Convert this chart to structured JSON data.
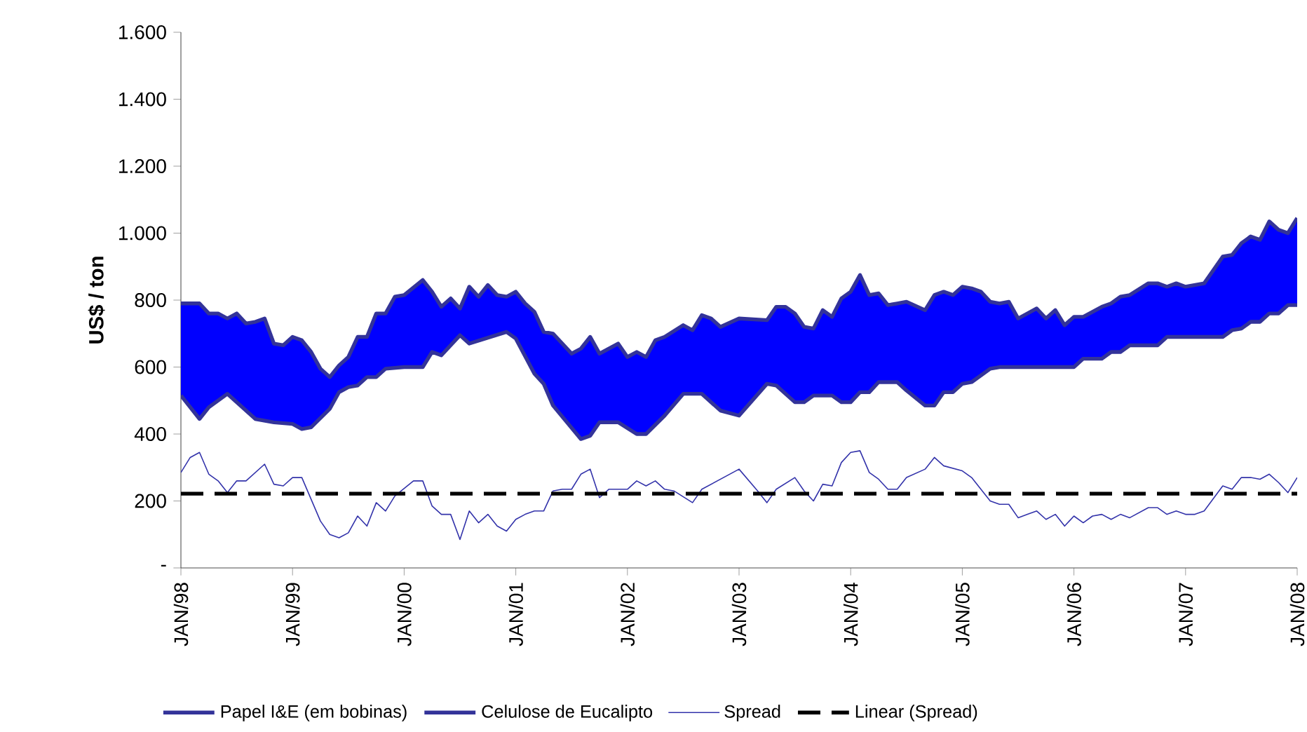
{
  "chart_data": {
    "type": "line",
    "ylabel": "US$ / ton",
    "xlim": [
      "1998-01",
      "2008-01"
    ],
    "xticks": [
      {
        "value": "1998-01",
        "label": "JAN/98"
      },
      {
        "value": "1999-01",
        "label": "JAN/99"
      },
      {
        "value": "2000-01",
        "label": "JAN/00"
      },
      {
        "value": "2001-01",
        "label": "JAN/01"
      },
      {
        "value": "2002-01",
        "label": "JAN/02"
      },
      {
        "value": "2003-01",
        "label": "JAN/03"
      },
      {
        "value": "2004-01",
        "label": "JAN/04"
      },
      {
        "value": "2005-01",
        "label": "JAN/05"
      },
      {
        "value": "2006-01",
        "label": "JAN/06"
      },
      {
        "value": "2007-01",
        "label": "JAN/07"
      },
      {
        "value": "2008-01",
        "label": "JAN/08"
      }
    ],
    "ylim": [
      0,
      1600
    ],
    "yticks": [
      {
        "value": 0,
        "label": "-"
      },
      200,
      400,
      600,
      800,
      {
        "value": 1000,
        "label": "1.000"
      },
      {
        "value": 1200,
        "label": "1.200"
      },
      {
        "value": 1400,
        "label": "1.400"
      },
      {
        "value": 1600,
        "label": "1.600"
      }
    ],
    "legend": "bottom",
    "series": [
      {
        "name": "Papel I&E (em bobinas)",
        "type": "area",
        "color": "#0000ff",
        "x": [
          "1998-01",
          "1998-03",
          "1998-04",
          "1998-05",
          "1998-06",
          "1998-07",
          "1998-08",
          "1998-09",
          "1998-10",
          "1998-11",
          "1998-12",
          "1999-01",
          "1999-02",
          "1999-03",
          "1999-04",
          "1999-05",
          "1999-06",
          "1999-07",
          "1999-08",
          "1999-09",
          "1999-10",
          "1999-11",
          "1999-12",
          "2000-01",
          "2000-03",
          "2000-04",
          "2000-05",
          "2000-06",
          "2000-07",
          "2000-08",
          "2000-09",
          "2000-10",
          "2000-11",
          "2000-12",
          "2001-01",
          "2001-02",
          "2001-03",
          "2001-04",
          "2001-05",
          "2001-07",
          "2001-08",
          "2001-09",
          "2001-10",
          "2001-12",
          "2002-01",
          "2002-02",
          "2002-03",
          "2002-04",
          "2002-05",
          "2002-07",
          "2002-08",
          "2002-09",
          "2002-10",
          "2002-11",
          "2003-01",
          "2003-04",
          "2003-05",
          "2003-06",
          "2003-07",
          "2003-08",
          "2003-09",
          "2003-10",
          "2003-11",
          "2003-12",
          "2004-01",
          "2004-02",
          "2004-03",
          "2004-04",
          "2004-05",
          "2004-06",
          "2004-07",
          "2004-09",
          "2004-10",
          "2004-11",
          "2004-12",
          "2005-01",
          "2005-02",
          "2005-03",
          "2005-04",
          "2005-05",
          "2005-06",
          "2005-07",
          "2005-09",
          "2005-10",
          "2005-11",
          "2005-12",
          "2006-01",
          "2006-02",
          "2006-04",
          "2006-05",
          "2006-06",
          "2006-07",
          "2006-09",
          "2006-10",
          "2006-11",
          "2006-12",
          "2007-01",
          "2007-03",
          "2007-05",
          "2007-06",
          "2007-07",
          "2007-08",
          "2007-09",
          "2007-10",
          "2007-11",
          "2007-12",
          "2008-01"
        ],
        "values": [
          790,
          790,
          760,
          760,
          745,
          760,
          730,
          735,
          745,
          670,
          665,
          690,
          680,
          645,
          595,
          570,
          605,
          630,
          690,
          690,
          760,
          760,
          810,
          815,
          860,
          825,
          780,
          805,
          775,
          840,
          810,
          845,
          815,
          810,
          825,
          790,
          765,
          705,
          700,
          640,
          655,
          690,
          640,
          670,
          630,
          645,
          630,
          680,
          690,
          725,
          710,
          755,
          745,
          720,
          745,
          740,
          780,
          780,
          760,
          720,
          715,
          770,
          750,
          805,
          825,
          875,
          815,
          820,
          785,
          790,
          795,
          770,
          815,
          825,
          815,
          840,
          835,
          825,
          795,
          790,
          795,
          745,
          775,
          745,
          770,
          725,
          750,
          750,
          780,
          790,
          810,
          815,
          850,
          850,
          840,
          850,
          840,
          850,
          930,
          935,
          970,
          990,
          980,
          1035,
          1010,
          1000,
          1045
        ]
      },
      {
        "name": "Celulose de Eucalipto",
        "color": "#333399",
        "x": [
          "1998-01",
          "1998-03",
          "1998-04",
          "1998-06",
          "1998-09",
          "1998-11",
          "1999-01",
          "1999-02",
          "1999-03",
          "1999-05",
          "1999-06",
          "1999-07",
          "1999-08",
          "1999-09",
          "1999-10",
          "1999-11",
          "2000-01",
          "2000-03",
          "2000-04",
          "2000-05",
          "2000-07",
          "2000-08",
          "2000-12",
          "2001-01",
          "2001-03",
          "2001-04",
          "2001-05",
          "2001-08",
          "2001-09",
          "2001-10",
          "2001-12",
          "2002-02",
          "2002-03",
          "2002-05",
          "2002-07",
          "2002-09",
          "2002-11",
          "2003-01",
          "2003-04",
          "2003-05",
          "2003-07",
          "2003-08",
          "2003-09",
          "2003-11",
          "2003-12",
          "2004-01",
          "2004-02",
          "2004-03",
          "2004-04",
          "2004-06",
          "2004-07",
          "2004-09",
          "2004-10",
          "2004-11",
          "2004-12",
          "2005-01",
          "2005-02",
          "2005-04",
          "2005-05",
          "2006-01",
          "2006-02",
          "2006-04",
          "2006-05",
          "2006-06",
          "2006-07",
          "2006-10",
          "2006-11",
          "2007-05",
          "2007-06",
          "2007-07",
          "2007-08",
          "2007-09",
          "2007-10",
          "2007-11",
          "2007-12",
          "2008-01"
        ],
        "values": [
          515,
          445,
          480,
          520,
          445,
          435,
          430,
          415,
          420,
          475,
          525,
          540,
          545,
          570,
          570,
          595,
          600,
          600,
          645,
          635,
          695,
          670,
          705,
          685,
          580,
          550,
          485,
          385,
          395,
          435,
          435,
          400,
          400,
          455,
          520,
          520,
          470,
          455,
          550,
          545,
          495,
          495,
          515,
          515,
          495,
          495,
          525,
          525,
          555,
          555,
          530,
          485,
          485,
          525,
          525,
          550,
          555,
          595,
          600,
          600,
          625,
          625,
          645,
          645,
          665,
          665,
          690,
          690,
          710,
          715,
          735,
          735,
          760,
          760,
          785,
          785
        ]
      },
      {
        "name": "Spread",
        "color": "#3333aa",
        "x": [
          "1998-01",
          "1998-02",
          "1998-03",
          "1998-04",
          "1998-05",
          "1998-06",
          "1998-07",
          "1998-08",
          "1998-10",
          "1998-11",
          "1998-12",
          "1999-01",
          "1999-02",
          "1999-04",
          "1999-05",
          "1999-06",
          "1999-07",
          "1999-08",
          "1999-09",
          "1999-10",
          "1999-11",
          "1999-12",
          "2000-02",
          "2000-03",
          "2000-04",
          "2000-05",
          "2000-06",
          "2000-07",
          "2000-08",
          "2000-09",
          "2000-10",
          "2000-11",
          "2000-12",
          "2001-01",
          "2001-02",
          "2001-03",
          "2001-04",
          "2001-05",
          "2001-06",
          "2001-07",
          "2001-08",
          "2001-09",
          "2001-10",
          "2001-11",
          "2002-01",
          "2002-02",
          "2002-03",
          "2002-04",
          "2002-05",
          "2002-06",
          "2002-08",
          "2002-09",
          "2003-01",
          "2003-03",
          "2003-04",
          "2003-05",
          "2003-07",
          "2003-08",
          "2003-09",
          "2003-10",
          "2003-11",
          "2003-12",
          "2004-01",
          "2004-02",
          "2004-03",
          "2004-04",
          "2004-05",
          "2004-06",
          "2004-07",
          "2004-09",
          "2004-10",
          "2004-11",
          "2005-01",
          "2005-02",
          "2005-03",
          "2005-04",
          "2005-05",
          "2005-06",
          "2005-07",
          "2005-08",
          "2005-09",
          "2005-10",
          "2005-11",
          "2005-12",
          "2006-01",
          "2006-02",
          "2006-03",
          "2006-04",
          "2006-05",
          "2006-06",
          "2006-07",
          "2006-08",
          "2006-09",
          "2006-10",
          "2006-11",
          "2006-12",
          "2007-01",
          "2007-02",
          "2007-03",
          "2007-05",
          "2007-06",
          "2007-07",
          "2007-08",
          "2007-09",
          "2007-10",
          "2007-11",
          "2007-12",
          "2008-01"
        ],
        "values": [
          285,
          330,
          345,
          280,
          260,
          225,
          260,
          260,
          310,
          250,
          245,
          270,
          270,
          140,
          100,
          90,
          105,
          155,
          125,
          195,
          170,
          215,
          260,
          260,
          185,
          160,
          160,
          85,
          170,
          135,
          160,
          125,
          110,
          145,
          160,
          170,
          170,
          230,
          235,
          235,
          280,
          295,
          210,
          235,
          235,
          260,
          245,
          260,
          235,
          230,
          195,
          235,
          295,
          230,
          195,
          235,
          270,
          230,
          200,
          250,
          245,
          315,
          345,
          350,
          285,
          265,
          235,
          235,
          270,
          295,
          330,
          305,
          290,
          270,
          235,
          200,
          190,
          190,
          150,
          160,
          170,
          145,
          160,
          125,
          155,
          135,
          155,
          160,
          145,
          160,
          150,
          165,
          180,
          180,
          160,
          170,
          160,
          160,
          170,
          245,
          235,
          270,
          270,
          265,
          280,
          255,
          225,
          270
        ]
      },
      {
        "name": "Linear (Spread)",
        "color": "#000000",
        "line_style": "dashed",
        "x": [
          "1998-01",
          "2008-01"
        ],
        "values": [
          222,
          222
        ]
      }
    ]
  }
}
